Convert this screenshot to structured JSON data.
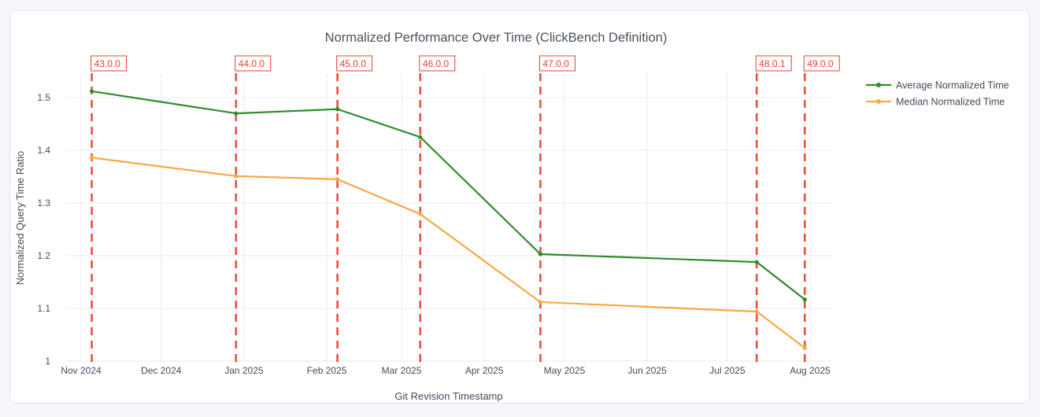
{
  "chart_data": {
    "type": "line",
    "title": "Normalized Performance Over Time (ClickBench Definition)",
    "xlabel": "Git Revision Timestamp",
    "ylabel": "Normalized Query Time Ratio",
    "x_axis_type": "time",
    "x_ticks": [
      {
        "label": "Nov 2024",
        "day": 0
      },
      {
        "label": "Dec 2024",
        "day": 30
      },
      {
        "label": "Jan 2025",
        "day": 61
      },
      {
        "label": "Feb 2025",
        "day": 92
      },
      {
        "label": "Mar 2025",
        "day": 120
      },
      {
        "label": "Apr 2025",
        "day": 151
      },
      {
        "label": "May 2025",
        "day": 181
      },
      {
        "label": "Jun 2025",
        "day": 212
      },
      {
        "label": "Jul 2025",
        "day": 242
      },
      {
        "label": "Aug 2025",
        "day": 273
      }
    ],
    "y_ticks": [
      {
        "label": "1",
        "value": 1.0
      },
      {
        "label": "1.1",
        "value": 1.1
      },
      {
        "label": "1.2",
        "value": 1.2
      },
      {
        "label": "1.3",
        "value": 1.3
      },
      {
        "label": "1.4",
        "value": 1.4
      },
      {
        "label": "1.5",
        "value": 1.5
      }
    ],
    "ylim": [
      1.0,
      1.545
    ],
    "grid": true,
    "legend_position": "right",
    "series": [
      {
        "name": "Average Normalized Time",
        "color": "#2e8b2e",
        "x_days": [
          4,
          58,
          96,
          127,
          172,
          253,
          271
        ],
        "values": [
          1.512,
          1.47,
          1.478,
          1.425,
          1.203,
          1.188,
          1.117
        ]
      },
      {
        "name": "Median Normalized Time",
        "color": "#f9a843",
        "x_days": [
          4,
          58,
          96,
          127,
          172,
          253,
          271
        ],
        "values": [
          1.386,
          1.351,
          1.345,
          1.279,
          1.112,
          1.094,
          1.025
        ]
      }
    ],
    "annotations": [
      {
        "label": "43.0.0",
        "day": 4
      },
      {
        "label": "44.0.0",
        "day": 58
      },
      {
        "label": "45.0.0",
        "day": 96
      },
      {
        "label": "46.0.0",
        "day": 127
      },
      {
        "label": "47.0.0",
        "day": 172
      },
      {
        "label": "48.0.1",
        "day": 253
      },
      {
        "label": "49.0.0",
        "day": 271
      }
    ],
    "annotation_color": "#e6402f"
  }
}
